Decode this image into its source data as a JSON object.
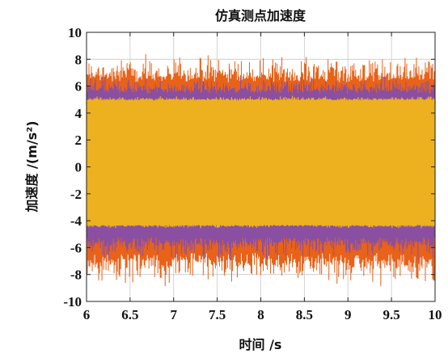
{
  "chart_data": {
    "type": "line",
    "title": "仿真测点加速度",
    "xlabel": "时间 /s",
    "ylabel": "加速度 /(m/s²)",
    "xlim": [
      6,
      10
    ],
    "ylim": [
      -10,
      10
    ],
    "x_ticks": [
      6,
      6.5,
      7,
      7.5,
      8,
      8.5,
      9,
      9.5,
      10
    ],
    "x_tick_labels": [
      "6",
      "6.5",
      "7",
      "7.5",
      "8",
      "8.5",
      "9",
      "9.5",
      "10"
    ],
    "y_ticks": [
      -10,
      -8,
      -6,
      -4,
      -2,
      0,
      2,
      4,
      6,
      8,
      10
    ],
    "y_tick_labels": [
      "-10",
      "-8",
      "-6",
      "-4",
      "-2",
      "0",
      "2",
      "4",
      "6",
      "8",
      "10"
    ],
    "grid": true,
    "series": [
      {
        "color": "#e8621a",
        "envelope_max": [
          5.6,
          8.1
        ],
        "envelope_min": [
          -8.6,
          -5.6
        ]
      },
      {
        "color": "#8a4fa0",
        "envelope_max": [
          5.0,
          6.6
        ],
        "envelope_min": [
          -6.8,
          -4.6
        ]
      },
      {
        "color": "#edb120",
        "envelope_max": [
          4.8,
          5.2
        ],
        "envelope_min": [
          -4.5,
          -4.2
        ]
      }
    ]
  }
}
